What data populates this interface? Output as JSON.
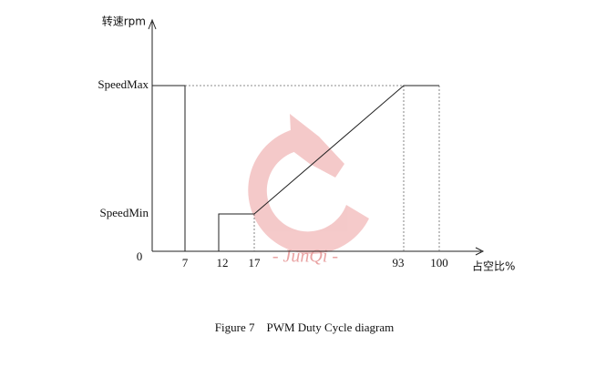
{
  "y_axis_label": "转速rpm",
  "x_axis_label": "占空比%",
  "y_labels": [
    "SpeedMax",
    "SpeedMin"
  ],
  "x_ticks": [
    0,
    7,
    12,
    17,
    93,
    100
  ],
  "watermark": "- JunQi -",
  "caption": "Figure 7    PWM Duty Cycle diagram"
}
